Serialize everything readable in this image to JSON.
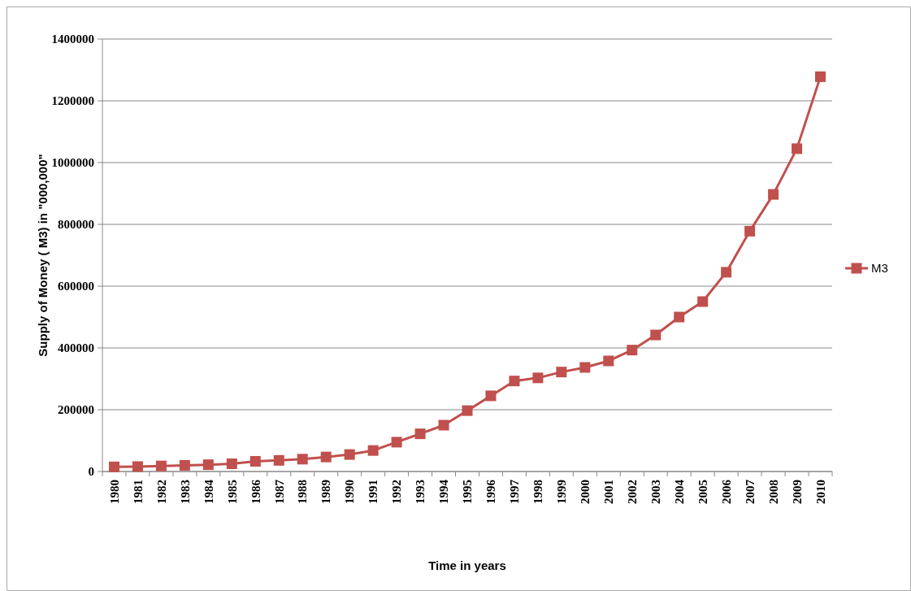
{
  "chart_data": {
    "type": "line",
    "xlabel": "Time in years",
    "ylabel": "Supply  of Money ( M3) in \"000,000\"",
    "categories": [
      "1980",
      "1981",
      "1982",
      "1983",
      "1984",
      "1985",
      "1986",
      "1987",
      "1988",
      "1989",
      "1990",
      "1991",
      "1992",
      "1993",
      "1994",
      "1995",
      "1996",
      "1997",
      "1998",
      "1999",
      "2000",
      "2001",
      "2002",
      "2003",
      "2004",
      "2005",
      "2006",
      "2007",
      "2008",
      "2009",
      "2010"
    ],
    "series": [
      {
        "name": "M3",
        "color": "#c0504d",
        "values": [
          15000,
          16000,
          18000,
          20000,
          22000,
          25000,
          33000,
          36000,
          40000,
          47000,
          55000,
          68000,
          95000,
          122000,
          150000,
          197000,
          245000,
          293000,
          303000,
          322000,
          337000,
          358000,
          393000,
          442000,
          500000,
          550000,
          645000,
          778000,
          897000,
          1045000,
          1278000
        ]
      }
    ],
    "ylim": [
      0,
      1400000
    ],
    "yticks": [
      0,
      200000,
      400000,
      600000,
      800000,
      1000000,
      1200000,
      1400000
    ],
    "grid": "y",
    "legend": "right",
    "marker": "square",
    "line_style": "solid"
  }
}
